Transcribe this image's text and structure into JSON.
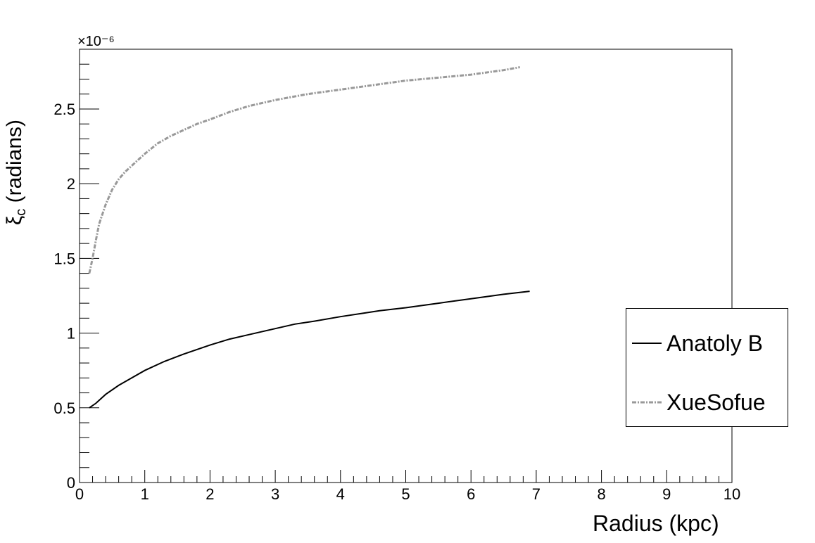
{
  "chart_data": {
    "type": "line",
    "title": "",
    "xlabel": "Radius (kpc)",
    "ylabel": "(radians)",
    "ylabel_symbol": "ξ",
    "ylabel_subscript": "c",
    "y_multiplier": "×10⁻⁶",
    "xlim": [
      0,
      10
    ],
    "ylim": [
      0,
      2.9
    ],
    "x_ticks": [
      "0",
      "1",
      "2",
      "3",
      "4",
      "5",
      "6",
      "7",
      "8",
      "9",
      "10"
    ],
    "y_ticks": [
      "0",
      "0.5",
      "1",
      "1.5",
      "2",
      "2.5"
    ],
    "grid": false,
    "legend_position": "right",
    "series": [
      {
        "name": "Anatoly B",
        "color": "#000000",
        "style": "solid",
        "x": [
          0.15,
          0.25,
          0.4,
          0.6,
          0.8,
          1.0,
          1.3,
          1.6,
          2.0,
          2.3,
          2.6,
          3.0,
          3.3,
          3.6,
          4.0,
          4.3,
          4.6,
          5.0,
          5.5,
          6.0,
          6.5,
          6.9
        ],
        "y": [
          0.5,
          0.53,
          0.59,
          0.65,
          0.7,
          0.75,
          0.81,
          0.86,
          0.92,
          0.96,
          0.99,
          1.03,
          1.06,
          1.08,
          1.11,
          1.13,
          1.15,
          1.17,
          1.2,
          1.23,
          1.26,
          1.28
        ]
      },
      {
        "name": "XueSofue",
        "color": "#999999",
        "style": "dashdot",
        "x": [
          0.15,
          0.2,
          0.25,
          0.3,
          0.4,
          0.5,
          0.6,
          0.7,
          0.85,
          1.0,
          1.2,
          1.4,
          1.6,
          1.8,
          2.0,
          2.3,
          2.6,
          3.0,
          3.5,
          4.0,
          4.5,
          5.0,
          5.5,
          6.0,
          6.5,
          6.75
        ],
        "y": [
          1.4,
          1.5,
          1.62,
          1.73,
          1.86,
          1.96,
          2.03,
          2.08,
          2.14,
          2.2,
          2.27,
          2.32,
          2.36,
          2.4,
          2.43,
          2.48,
          2.52,
          2.56,
          2.6,
          2.63,
          2.66,
          2.69,
          2.71,
          2.73,
          2.76,
          2.78
        ]
      }
    ]
  },
  "colors": {
    "axis": "#000000",
    "background": "#ffffff"
  }
}
